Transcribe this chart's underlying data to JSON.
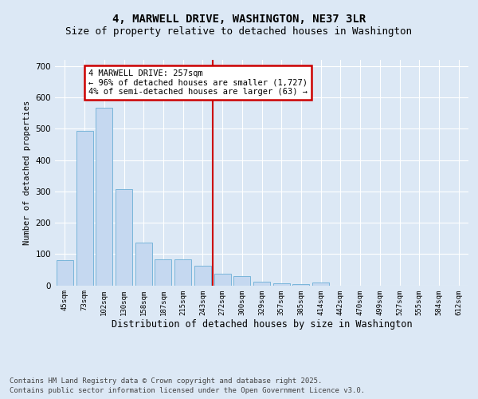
{
  "title_line1": "4, MARWELL DRIVE, WASHINGTON, NE37 3LR",
  "title_line2": "Size of property relative to detached houses in Washington",
  "xlabel": "Distribution of detached houses by size in Washington",
  "ylabel": "Number of detached properties",
  "categories": [
    "45sqm",
    "73sqm",
    "102sqm",
    "130sqm",
    "158sqm",
    "187sqm",
    "215sqm",
    "243sqm",
    "272sqm",
    "300sqm",
    "329sqm",
    "357sqm",
    "385sqm",
    "414sqm",
    "442sqm",
    "470sqm",
    "499sqm",
    "527sqm",
    "555sqm",
    "584sqm",
    "612sqm"
  ],
  "values": [
    80,
    493,
    567,
    307,
    137,
    82,
    82,
    62,
    38,
    30,
    12,
    6,
    5,
    10,
    0,
    0,
    0,
    0,
    0,
    0,
    0
  ],
  "bar_color": "#c5d8f0",
  "bar_edge_color": "#6baed6",
  "vline_x": 7.5,
  "vline_color": "#cc0000",
  "annotation_title": "4 MARWELL DRIVE: 257sqm",
  "annotation_line2": "← 96% of detached houses are smaller (1,727)",
  "annotation_line3": "4% of semi-detached houses are larger (63) →",
  "annotation_box_color": "#cc0000",
  "annotation_bg": "#ffffff",
  "ylim": [
    0,
    720
  ],
  "yticks": [
    0,
    100,
    200,
    300,
    400,
    500,
    600,
    700
  ],
  "footer_line1": "Contains HM Land Registry data © Crown copyright and database right 2025.",
  "footer_line2": "Contains public sector information licensed under the Open Government Licence v3.0.",
  "bg_color": "#dce8f5",
  "plot_bg_color": "#dce8f5",
  "grid_color": "#ffffff",
  "title_fontsize": 10,
  "subtitle_fontsize": 9,
  "footer_fontsize": 6.5,
  "annotation_fontsize": 7.5,
  "ylabel_fontsize": 7.5,
  "xlabel_fontsize": 8.5
}
